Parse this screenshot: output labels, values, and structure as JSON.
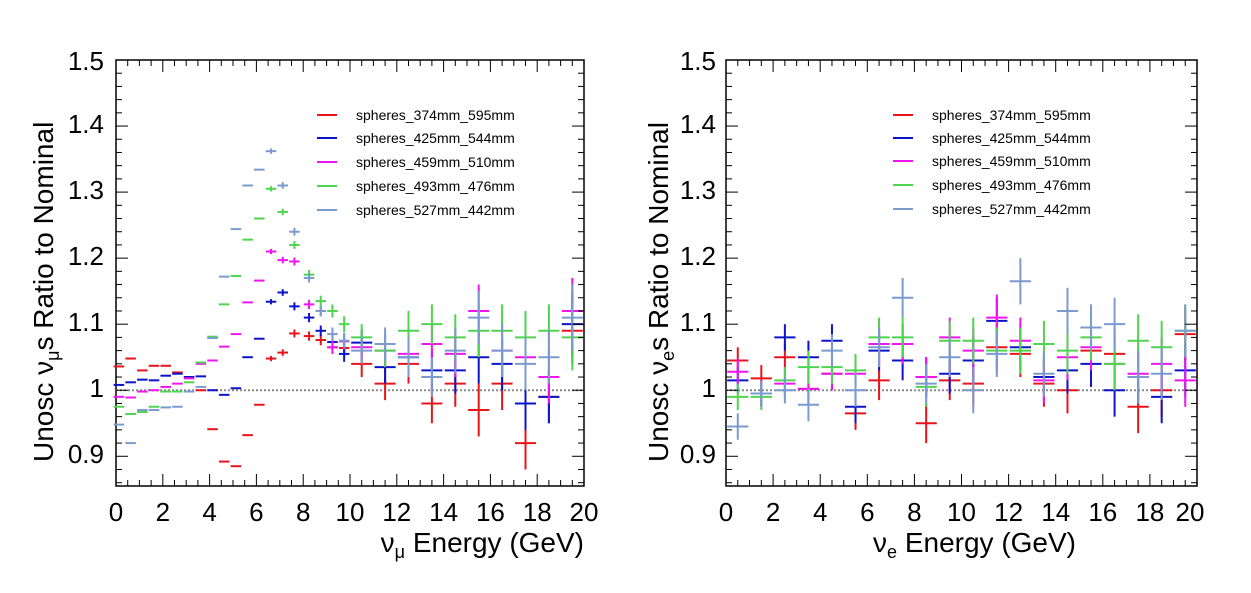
{
  "chart_data": [
    {
      "type": "scatter",
      "panel": "numu",
      "ylabel_prefix": "Unosc ",
      "ylabel_nu": "ν",
      "ylabel_sub": "μ",
      "ylabel_suffix": "s Ratio to Nominal",
      "xlabel_nu": "ν",
      "xlabel_sub": "μ",
      "xlabel_suffix": " Energy (GeV)",
      "xlim": [
        0,
        20
      ],
      "ylim": [
        0.855,
        1.5
      ],
      "xticks": [
        "0",
        "2",
        "4",
        "6",
        "8",
        "10",
        "12",
        "14",
        "16",
        "18",
        "20"
      ],
      "yticks": [
        "0.9",
        "1",
        "1.1",
        "1.2",
        "1.3",
        "1.4",
        "1.5"
      ],
      "reference_line": 1.0,
      "legend_position": "top-right",
      "series": [
        {
          "name": "spheres_374mm_595mm",
          "color": "#e8141b",
          "x": [
            0.125,
            0.625,
            1.125,
            1.625,
            2.125,
            2.625,
            3.125,
            3.625,
            4.125,
            4.625,
            5.125,
            5.625,
            6.125,
            6.625,
            7.125,
            7.625,
            8.25,
            8.75,
            9.25,
            9.75,
            10.5,
            11.5,
            12.5,
            13.5,
            14.5,
            15.5,
            16.5,
            17.5,
            18.5,
            19.5
          ],
          "y": [
            1.036,
            1.048,
            1.03,
            1.037,
            1.037,
            1.027,
            1.02,
            1.0,
            0.941,
            0.892,
            0.885,
            0.932,
            0.978,
            1.048,
            1.057,
            1.086,
            1.082,
            1.076,
            1.065,
            1.064,
            1.04,
            1.01,
            1.04,
            0.98,
            1.01,
            0.97,
            1.01,
            0.92,
            0.99,
            1.09
          ],
          "err": [
            0.002,
            0.002,
            0.002,
            0.002,
            0.002,
            0.002,
            0.002,
            0.002,
            0.002,
            0.002,
            0.002,
            0.003,
            0.003,
            0.004,
            0.005,
            0.006,
            0.007,
            0.008,
            0.01,
            0.012,
            0.02,
            0.025,
            0.03,
            0.03,
            0.035,
            0.04,
            0.04,
            0.04,
            0.04,
            0.05
          ]
        },
        {
          "name": "spheres_425mm_544mm",
          "color": "#0c14c8",
          "x": [
            0.125,
            0.625,
            1.125,
            1.625,
            2.125,
            2.625,
            3.125,
            3.625,
            4.125,
            4.625,
            5.125,
            5.625,
            6.125,
            6.625,
            7.125,
            7.625,
            8.25,
            8.75,
            9.25,
            9.75,
            10.5,
            11.5,
            12.5,
            13.5,
            14.5,
            15.5,
            16.5,
            17.5,
            18.5,
            19.5
          ],
          "y": [
            1.008,
            1.012,
            1.016,
            1.015,
            1.022,
            1.025,
            1.02,
            1.021,
            1.0,
            0.993,
            1.003,
            1.05,
            1.078,
            1.134,
            1.148,
            1.127,
            1.11,
            1.09,
            1.073,
            1.055,
            1.072,
            1.035,
            1.05,
            1.03,
            1.03,
            1.05,
            1.04,
            0.98,
            0.99,
            1.1
          ],
          "err": [
            0.002,
            0.002,
            0.002,
            0.002,
            0.002,
            0.002,
            0.002,
            0.002,
            0.002,
            0.002,
            0.002,
            0.003,
            0.003,
            0.004,
            0.005,
            0.006,
            0.007,
            0.008,
            0.01,
            0.012,
            0.02,
            0.025,
            0.03,
            0.03,
            0.035,
            0.04,
            0.04,
            0.04,
            0.04,
            0.05
          ]
        },
        {
          "name": "spheres_459mm_510mm",
          "color": "#f014f0",
          "x": [
            0.125,
            0.625,
            1.125,
            1.625,
            2.125,
            2.625,
            3.125,
            3.625,
            4.125,
            4.625,
            5.125,
            5.625,
            6.125,
            6.625,
            7.125,
            7.625,
            8.25,
            8.75,
            9.25,
            9.75,
            10.5,
            11.5,
            12.5,
            13.5,
            14.5,
            15.5,
            16.5,
            17.5,
            18.5,
            19.5
          ],
          "y": [
            0.99,
            0.989,
            0.998,
            1.0,
            1.005,
            1.01,
            1.018,
            1.04,
            1.045,
            1.066,
            1.085,
            1.133,
            1.166,
            1.21,
            1.197,
            1.195,
            1.13,
            1.12,
            1.065,
            1.074,
            1.065,
            1.06,
            1.055,
            1.07,
            1.055,
            1.12,
            1.06,
            1.05,
            1.02,
            1.12
          ],
          "err": [
            0.002,
            0.002,
            0.002,
            0.002,
            0.002,
            0.002,
            0.002,
            0.002,
            0.002,
            0.002,
            0.002,
            0.003,
            0.003,
            0.004,
            0.005,
            0.006,
            0.007,
            0.008,
            0.01,
            0.012,
            0.02,
            0.025,
            0.03,
            0.03,
            0.035,
            0.04,
            0.04,
            0.04,
            0.04,
            0.05
          ]
        },
        {
          "name": "spheres_493mm_476mm",
          "color": "#4fd44f",
          "x": [
            0.125,
            0.625,
            1.125,
            1.625,
            2.125,
            2.625,
            3.125,
            3.625,
            4.125,
            4.625,
            5.125,
            5.625,
            6.125,
            6.625,
            7.125,
            7.625,
            8.25,
            8.75,
            9.25,
            9.75,
            10.5,
            11.5,
            12.5,
            13.5,
            14.5,
            15.5,
            16.5,
            17.5,
            18.5,
            19.5
          ],
          "y": [
            0.975,
            0.964,
            0.967,
            0.975,
            0.998,
            0.998,
            1.012,
            1.042,
            1.081,
            1.13,
            1.173,
            1.228,
            1.26,
            1.305,
            1.27,
            1.22,
            1.175,
            1.135,
            1.12,
            1.1,
            1.08,
            1.06,
            1.09,
            1.1,
            1.08,
            1.09,
            1.09,
            1.08,
            1.09,
            1.08
          ],
          "err": [
            0.002,
            0.002,
            0.002,
            0.002,
            0.002,
            0.002,
            0.002,
            0.002,
            0.002,
            0.002,
            0.002,
            0.003,
            0.003,
            0.004,
            0.005,
            0.006,
            0.007,
            0.008,
            0.01,
            0.012,
            0.02,
            0.025,
            0.03,
            0.03,
            0.035,
            0.04,
            0.04,
            0.04,
            0.04,
            0.05
          ]
        },
        {
          "name": "spheres_527mm_442mm",
          "color": "#7b9bcf",
          "x": [
            0.125,
            0.625,
            1.125,
            1.625,
            2.125,
            2.625,
            3.125,
            3.625,
            4.125,
            4.625,
            5.125,
            5.625,
            6.125,
            6.625,
            7.125,
            7.625,
            8.25,
            8.75,
            9.25,
            9.75,
            10.5,
            11.5,
            12.5,
            13.5,
            14.5,
            15.5,
            16.5,
            17.5,
            18.5,
            19.5
          ],
          "y": [
            0.948,
            0.92,
            0.97,
            0.97,
            0.974,
            0.975,
            0.998,
            1.005,
            1.079,
            1.172,
            1.244,
            1.31,
            1.334,
            1.362,
            1.31,
            1.24,
            1.17,
            1.12,
            1.085,
            1.075,
            1.06,
            1.07,
            1.05,
            1.02,
            1.06,
            1.11,
            1.06,
            1.04,
            1.05,
            1.11
          ],
          "err": [
            0.002,
            0.002,
            0.002,
            0.002,
            0.002,
            0.002,
            0.002,
            0.002,
            0.002,
            0.002,
            0.002,
            0.003,
            0.003,
            0.004,
            0.005,
            0.006,
            0.007,
            0.008,
            0.01,
            0.012,
            0.02,
            0.025,
            0.03,
            0.03,
            0.035,
            0.04,
            0.04,
            0.04,
            0.04,
            0.05
          ]
        }
      ]
    },
    {
      "type": "scatter",
      "panel": "nue",
      "ylabel_prefix": "Unosc ",
      "ylabel_nu": "ν",
      "ylabel_sub": "e",
      "ylabel_suffix": "s Ratio to Nominal",
      "xlabel_nu": "ν",
      "xlabel_sub": "e",
      "xlabel_suffix": " Energy (GeV)",
      "xlim": [
        0,
        20
      ],
      "ylim": [
        0.855,
        1.5
      ],
      "xticks": [
        "0",
        "2",
        "4",
        "6",
        "8",
        "10",
        "12",
        "14",
        "16",
        "18",
        "20"
      ],
      "yticks": [
        "0.9",
        "1",
        "1.1",
        "1.2",
        "1.3",
        "1.4",
        "1.5"
      ],
      "reference_line": 1.0,
      "legend_position": "top-right",
      "series": [
        {
          "name": "spheres_374mm_595mm",
          "color": "#e8141b",
          "x": [
            0.5,
            1.5,
            2.5,
            3.5,
            4.5,
            5.5,
            6.5,
            7.5,
            8.5,
            9.5,
            10.5,
            11.5,
            12.5,
            13.5,
            14.5,
            15.5,
            16.5,
            17.5,
            18.5,
            19.5
          ],
          "y": [
            1.045,
            1.018,
            1.05,
            1.002,
            1.025,
            0.965,
            1.015,
            1.07,
            0.95,
            1.015,
            1.01,
            1.065,
            1.055,
            1.01,
            1.0,
            1.06,
            1.055,
            0.975,
            1.0,
            1.085
          ],
          "err": [
            0.02,
            0.02,
            0.02,
            0.025,
            0.025,
            0.025,
            0.03,
            0.03,
            0.03,
            0.03,
            0.035,
            0.035,
            0.035,
            0.035,
            0.035,
            0.035,
            0.04,
            0.04,
            0.04,
            0.04
          ]
        },
        {
          "name": "spheres_425mm_544mm",
          "color": "#0c14c8",
          "x": [
            0.5,
            1.5,
            2.5,
            3.5,
            4.5,
            5.5,
            6.5,
            7.5,
            8.5,
            9.5,
            10.5,
            11.5,
            12.5,
            13.5,
            14.5,
            15.5,
            16.5,
            17.5,
            18.5,
            19.5
          ],
          "y": [
            1.015,
            0.995,
            1.08,
            1.05,
            1.075,
            0.975,
            1.06,
            1.045,
            1.02,
            1.025,
            1.045,
            1.105,
            1.065,
            1.02,
            1.03,
            1.04,
            1.0,
            1.02,
            0.99,
            1.03
          ],
          "err": [
            0.02,
            0.02,
            0.02,
            0.025,
            0.025,
            0.025,
            0.03,
            0.03,
            0.03,
            0.03,
            0.035,
            0.035,
            0.035,
            0.035,
            0.035,
            0.035,
            0.04,
            0.04,
            0.04,
            0.04
          ]
        },
        {
          "name": "spheres_459mm_510mm",
          "color": "#f014f0",
          "x": [
            0.5,
            1.5,
            2.5,
            3.5,
            4.5,
            5.5,
            6.5,
            7.5,
            8.5,
            9.5,
            10.5,
            11.5,
            12.5,
            13.5,
            14.5,
            15.5,
            16.5,
            17.5,
            18.5,
            19.5
          ],
          "y": [
            1.028,
            0.995,
            1.01,
            1.002,
            1.025,
            1.025,
            1.07,
            1.07,
            1.02,
            1.08,
            1.06,
            1.11,
            1.075,
            1.015,
            1.05,
            1.065,
            1.04,
            1.025,
            1.04,
            1.015
          ],
          "err": [
            0.02,
            0.02,
            0.02,
            0.025,
            0.025,
            0.025,
            0.03,
            0.03,
            0.03,
            0.03,
            0.035,
            0.035,
            0.035,
            0.035,
            0.035,
            0.035,
            0.04,
            0.04,
            0.04,
            0.04
          ]
        },
        {
          "name": "spheres_493mm_476mm",
          "color": "#4fd44f",
          "x": [
            0.5,
            1.5,
            2.5,
            3.5,
            4.5,
            5.5,
            6.5,
            7.5,
            8.5,
            9.5,
            10.5,
            11.5,
            12.5,
            13.5,
            14.5,
            15.5,
            16.5,
            17.5,
            18.5,
            19.5
          ],
          "y": [
            0.99,
            0.99,
            1.015,
            1.035,
            1.035,
            1.03,
            1.08,
            1.08,
            1.005,
            1.075,
            1.075,
            1.06,
            1.06,
            1.07,
            1.06,
            1.08,
            1.04,
            1.075,
            1.065,
            1.09
          ],
          "err": [
            0.02,
            0.02,
            0.02,
            0.025,
            0.025,
            0.025,
            0.03,
            0.03,
            0.03,
            0.03,
            0.035,
            0.035,
            0.035,
            0.035,
            0.035,
            0.035,
            0.04,
            0.04,
            0.04,
            0.04
          ]
        },
        {
          "name": "spheres_527mm_442mm",
          "color": "#7b9bcf",
          "x": [
            0.5,
            1.5,
            2.5,
            3.5,
            4.5,
            5.5,
            6.5,
            7.5,
            8.5,
            9.5,
            10.5,
            11.5,
            12.5,
            13.5,
            14.5,
            15.5,
            16.5,
            17.5,
            18.5,
            19.5
          ],
          "y": [
            0.945,
            0.995,
            1.0,
            0.978,
            1.06,
            1.0,
            1.065,
            1.14,
            1.01,
            1.05,
            1.0,
            1.055,
            1.165,
            1.025,
            1.12,
            1.095,
            1.1,
            1.02,
            1.025,
            1.09
          ],
          "err": [
            0.02,
            0.02,
            0.02,
            0.025,
            0.025,
            0.025,
            0.03,
            0.03,
            0.03,
            0.03,
            0.035,
            0.035,
            0.035,
            0.035,
            0.035,
            0.035,
            0.04,
            0.04,
            0.04,
            0.04
          ]
        }
      ]
    }
  ]
}
